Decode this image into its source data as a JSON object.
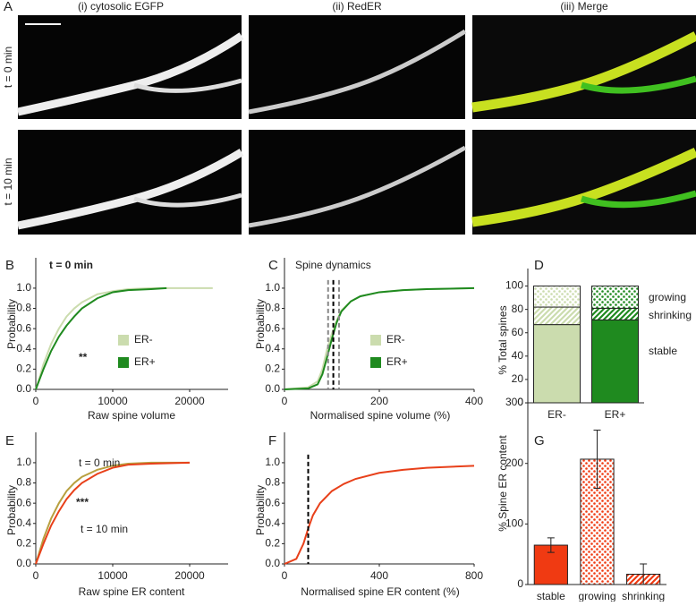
{
  "figure": {
    "panel_label": "A",
    "columns": [
      "(i) cytosolic EGFP",
      "(ii) RedER",
      "(iii) Merge"
    ],
    "rows": [
      "t = 0 min",
      "t = 10 min"
    ]
  },
  "chart_data": [
    {
      "type": "line",
      "panel": "B",
      "xlabel": "Raw spine volume",
      "ylabel": "Probability",
      "annotations": [
        "t = 0 min",
        "**"
      ],
      "xlim": [
        0,
        25000
      ],
      "xticks": [
        0,
        10000,
        20000
      ],
      "ylim": [
        0,
        1.3
      ],
      "yticks": [
        {
          "value": 0,
          "label": "0.0"
        },
        0.2,
        0.4,
        0.6,
        0.8,
        {
          "value": 1,
          "label": "1.0"
        }
      ],
      "series": [
        {
          "name": "ER-",
          "color": "#cbdcae",
          "x": [
            0,
            500,
            1000,
            2000,
            3000,
            4000,
            5000,
            6000,
            8000,
            10000,
            12000,
            15000,
            20000,
            23000
          ],
          "values": [
            0,
            0.12,
            0.25,
            0.45,
            0.6,
            0.72,
            0.8,
            0.86,
            0.94,
            0.97,
            0.99,
            1,
            1,
            1
          ]
        },
        {
          "name": "ER+",
          "color": "#1f8a1f",
          "x": [
            0,
            500,
            1000,
            2000,
            3000,
            4000,
            5000,
            6000,
            8000,
            10000,
            12000,
            15000,
            17000
          ],
          "values": [
            0,
            0.1,
            0.2,
            0.38,
            0.52,
            0.63,
            0.72,
            0.8,
            0.9,
            0.96,
            0.98,
            0.99,
            1
          ]
        }
      ]
    },
    {
      "type": "line",
      "panel": "C",
      "title": "Spine dynamics",
      "xlabel": "Normalised spine volume (%)",
      "ylabel": "Probability",
      "xlim": [
        0,
        400
      ],
      "xticks": [
        0,
        200,
        400
      ],
      "ylim": [
        0,
        1.3
      ],
      "yticks": [
        {
          "value": 0,
          "label": "0.0"
        },
        0.2,
        0.4,
        0.6,
        0.8,
        {
          "value": 1,
          "label": "1.0"
        }
      ],
      "vlines": [
        92,
        103,
        115
      ],
      "vline_colors": [
        "#888888",
        "#000000",
        "#888888"
      ],
      "series": [
        {
          "name": "ER-",
          "color": "#cbdcae",
          "x": [
            0,
            50,
            70,
            80,
            90,
            100,
            110,
            120,
            140,
            160,
            200,
            250,
            300,
            400
          ],
          "values": [
            0,
            0.02,
            0.08,
            0.2,
            0.4,
            0.55,
            0.68,
            0.78,
            0.87,
            0.92,
            0.96,
            0.98,
            0.99,
            1
          ]
        },
        {
          "name": "ER+",
          "color": "#1f8a1f",
          "x": [
            0,
            50,
            70,
            80,
            90,
            100,
            110,
            120,
            140,
            160,
            200,
            250,
            300,
            400
          ],
          "values": [
            0,
            0.01,
            0.05,
            0.15,
            0.32,
            0.5,
            0.66,
            0.77,
            0.87,
            0.92,
            0.96,
            0.98,
            0.99,
            1
          ]
        }
      ]
    },
    {
      "type": "stacked_bar",
      "panel": "D",
      "ylabel": "% Total spines",
      "categories": [
        "ER-",
        "ER+"
      ],
      "colors": [
        "#cbdcae",
        "#1f8a1f"
      ],
      "ylim": [
        0,
        115
      ],
      "yticks": [
        0,
        20,
        40,
        60,
        80,
        100
      ],
      "series": [
        {
          "name": "stable",
          "fill": "solid",
          "values": [
            67,
            71
          ]
        },
        {
          "name": "shrinking",
          "fill": "hatch",
          "values": [
            15,
            10
          ]
        },
        {
          "name": "growing",
          "fill": "dots",
          "values": [
            18,
            19
          ]
        }
      ]
    },
    {
      "type": "line",
      "panel": "E",
      "xlabel": "Raw spine ER content",
      "ylabel": "Probability",
      "annotations": [
        "***"
      ],
      "xlim": [
        0,
        25000
      ],
      "xticks": [
        0,
        10000,
        20000
      ],
      "ylim": [
        0,
        1.3
      ],
      "yticks": [
        {
          "value": 0,
          "label": "0.0"
        },
        0.2,
        0.4,
        0.6,
        0.8,
        {
          "value": 1,
          "label": "1.0"
        }
      ],
      "series": [
        {
          "name": "t = 0 min",
          "color": "#b8a040",
          "x": [
            0,
            1000,
            2000,
            3000,
            4000,
            5000,
            6000,
            8000,
            10000,
            12000,
            15000,
            20000
          ],
          "values": [
            0,
            0.25,
            0.45,
            0.6,
            0.72,
            0.8,
            0.86,
            0.93,
            0.97,
            0.99,
            1,
            1
          ]
        },
        {
          "name": "t = 10 min",
          "color": "#e8401a",
          "x": [
            0,
            1000,
            2000,
            3000,
            4000,
            5000,
            6000,
            8000,
            10000,
            12000,
            15000,
            20000
          ],
          "values": [
            0,
            0.2,
            0.38,
            0.52,
            0.64,
            0.73,
            0.8,
            0.89,
            0.95,
            0.98,
            0.99,
            1
          ]
        }
      ]
    },
    {
      "type": "line",
      "panel": "F",
      "xlabel": "Normalised spine ER content (%)",
      "ylabel": "Probability",
      "xlim": [
        0,
        800
      ],
      "xticks": [
        0,
        400,
        800
      ],
      "ylim": [
        0,
        1.3
      ],
      "yticks": [
        {
          "value": 0,
          "label": "0.0"
        },
        0.2,
        0.4,
        0.6,
        0.8,
        {
          "value": 1,
          "label": "1.0"
        }
      ],
      "vlines": [
        100
      ],
      "vline_colors": [
        "#000000"
      ],
      "series": [
        {
          "color": "#e8401a",
          "x": [
            0,
            50,
            80,
            100,
            120,
            150,
            200,
            250,
            300,
            400,
            500,
            600,
            800
          ],
          "values": [
            0,
            0.05,
            0.2,
            0.35,
            0.48,
            0.6,
            0.72,
            0.79,
            0.84,
            0.9,
            0.93,
            0.95,
            0.97
          ]
        }
      ]
    },
    {
      "type": "bar",
      "panel": "G",
      "ylabel": "% Spine ER content",
      "categories": [
        "stable",
        "growing",
        "shrinking"
      ],
      "values": [
        65,
        207,
        17
      ],
      "errors": [
        12,
        48,
        17
      ],
      "fills": [
        "solid",
        "dots",
        "hatch"
      ],
      "color": "#f03a12",
      "ylim": [
        0,
        340
      ],
      "yticks": [
        0,
        100,
        200,
        300
      ]
    }
  ]
}
